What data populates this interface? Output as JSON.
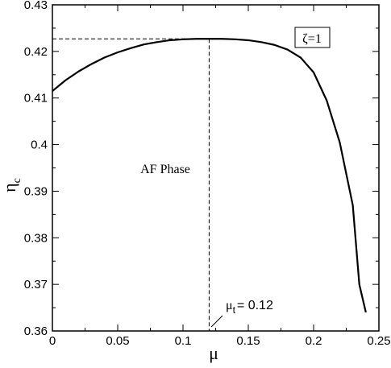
{
  "chart_data": {
    "type": "line",
    "title": "",
    "xlabel": "μ",
    "ylabel": "η",
    "ylabel_subscript": "c",
    "xlim": [
      0,
      0.25
    ],
    "ylim": [
      0.36,
      0.43
    ],
    "x_ticks": [
      0,
      0.05,
      0.1,
      0.15,
      0.2,
      0.25
    ],
    "x_tick_labels": [
      "0",
      "0.05",
      "0.1",
      "0.15",
      "0.2",
      "0.25"
    ],
    "y_ticks": [
      0.36,
      0.37,
      0.38,
      0.39,
      0.4,
      0.41,
      0.42,
      0.43
    ],
    "y_tick_labels": [
      "0.36",
      "0.37",
      "0.38",
      "0.39",
      "0.4",
      "0.41",
      "0.42",
      "0.43"
    ],
    "grid": false,
    "legend": "none",
    "series": [
      {
        "x": [
          0,
          0.01,
          0.02,
          0.03,
          0.04,
          0.05,
          0.06,
          0.07,
          0.08,
          0.09,
          0.1,
          0.11,
          0.12,
          0.13,
          0.14,
          0.15,
          0.16,
          0.17,
          0.18,
          0.19,
          0.2,
          0.21,
          0.22,
          0.23,
          0.235,
          0.24
        ],
        "y": [
          0.4115,
          0.4138,
          0.4157,
          0.4173,
          0.4187,
          0.4198,
          0.4207,
          0.4215,
          0.422,
          0.4224,
          0.4226,
          0.4227,
          0.4227,
          0.4227,
          0.4226,
          0.4224,
          0.422,
          0.4214,
          0.4204,
          0.4187,
          0.4155,
          0.4095,
          0.4005,
          0.387,
          0.37,
          0.364
        ],
        "color": "#000000"
      }
    ],
    "reference_lines": {
      "horizontal_y": 0.4227,
      "vertical_x": 0.12
    },
    "annotations": {
      "region_label": "AF Phase",
      "box_label": "ζ=1",
      "point_label_symbol": "μ",
      "point_label_sub": "t",
      "point_label_value": "= 0.12"
    }
  }
}
